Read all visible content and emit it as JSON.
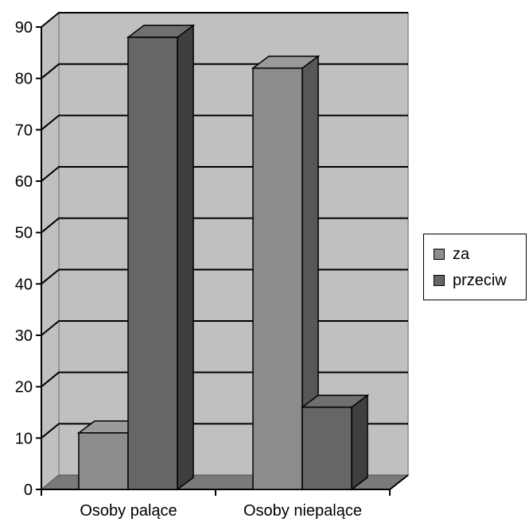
{
  "chart_data": {
    "type": "bar",
    "categories": [
      "Osoby palące",
      "Osoby niepalące"
    ],
    "series": [
      {
        "name": "za",
        "values": [
          11,
          82
        ],
        "color": "#8c8c8c"
      },
      {
        "name": "przeciw",
        "values": [
          88,
          16
        ],
        "color": "#666666"
      }
    ],
    "yticks": [
      "0",
      "10",
      "20",
      "30",
      "40",
      "50",
      "60",
      "70",
      "80",
      "90"
    ],
    "ylim": [
      0,
      90
    ],
    "grid": true,
    "legend_position": "right",
    "wall_color": "#c0c0c0",
    "title": "",
    "xlabel": "",
    "ylabel": ""
  }
}
